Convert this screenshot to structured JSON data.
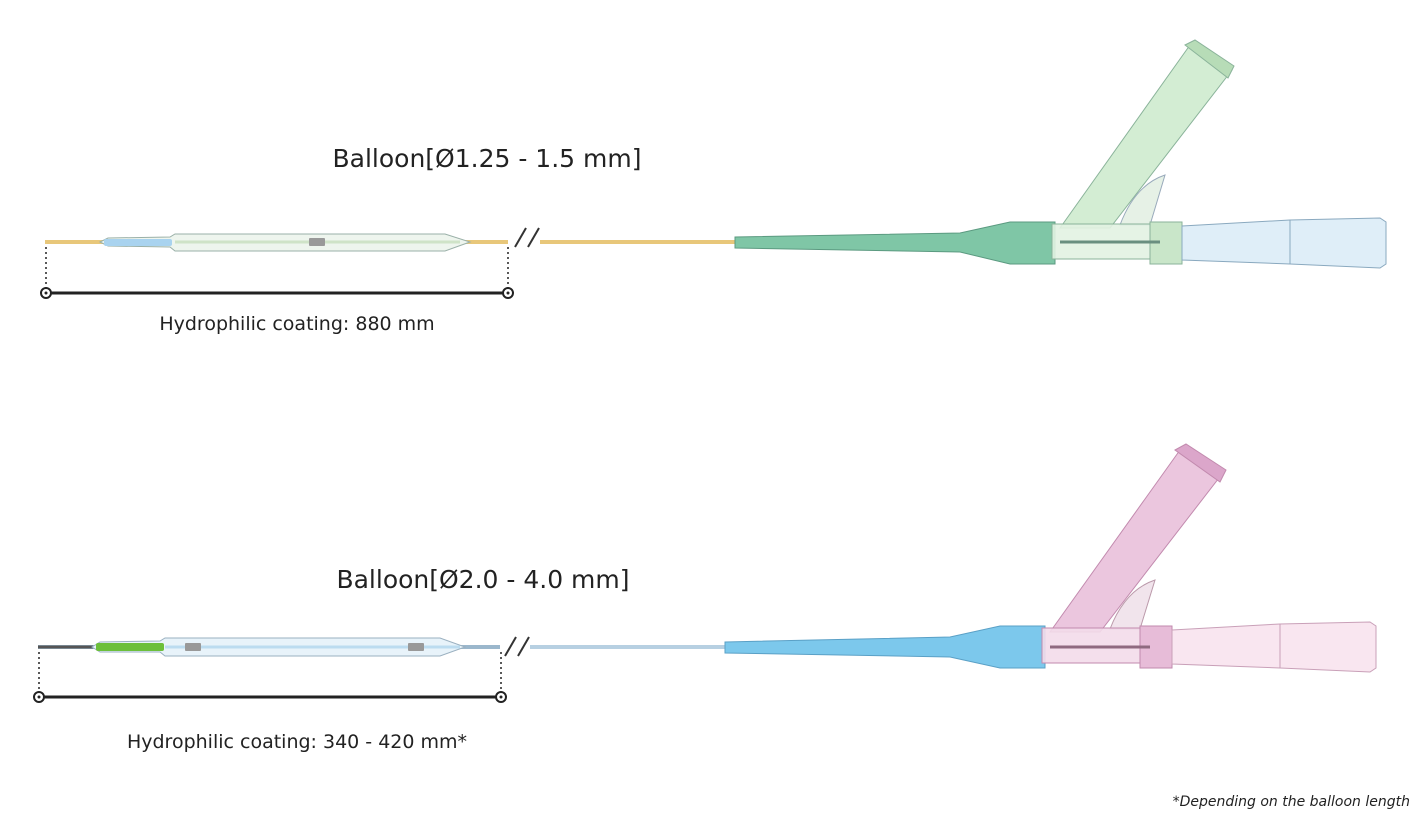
{
  "catheters": [
    {
      "balloon_label": "Balloon[Ø1.25 - 1.5 mm]",
      "coating_label": "Hydrophilic coating: 880 mm"
    },
    {
      "balloon_label": "Balloon[Ø2.0 - 4.0 mm]",
      "coating_label": "Hydrophilic coating: 340 - 420 mm*"
    }
  ],
  "footnote": "*Depending on the balloon length"
}
